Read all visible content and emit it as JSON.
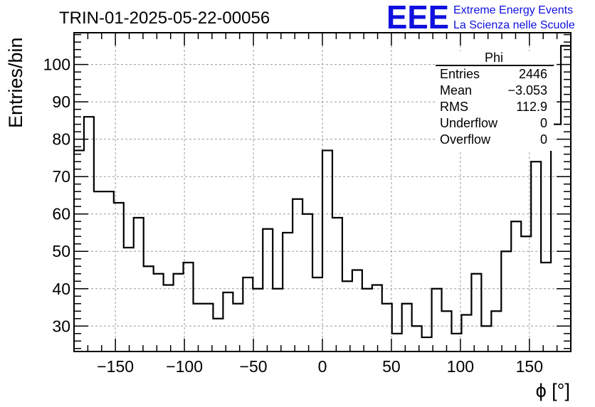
{
  "chart_data": {
    "type": "histogram",
    "title": "TRIN-01-2025-05-22-00056",
    "xlabel": "ϕ [°]",
    "ylabel": "Entries/bin",
    "xlim": [
      -180,
      180
    ],
    "ylim": [
      23.2,
      108.5
    ],
    "grid": true,
    "bin_width": 7.2,
    "x_ticks": [
      -150,
      -100,
      -50,
      0,
      50,
      100,
      150
    ],
    "x_tick_labels": [
      "−150",
      "−100",
      "−50",
      "0",
      "50",
      "100",
      "150"
    ],
    "y_ticks": [
      30,
      40,
      50,
      60,
      70,
      80,
      90,
      100
    ],
    "y_tick_labels": [
      "30",
      "40",
      "50",
      "60",
      "70",
      "80",
      "90",
      "100"
    ],
    "values": [
      77,
      86,
      66,
      66,
      63,
      51,
      59,
      46,
      44,
      41,
      44,
      47,
      36,
      36,
      32,
      39,
      36,
      43,
      40,
      56,
      40,
      55,
      64,
      60,
      43,
      77,
      59,
      42,
      45,
      40,
      41,
      36,
      28,
      36,
      30,
      27,
      40,
      34,
      28,
      33,
      44,
      30,
      34,
      50,
      58,
      54,
      74,
      47,
      84,
      105
    ],
    "stats": {
      "name": "Phi",
      "rows": [
        {
          "label": "Entries",
          "value": "2446"
        },
        {
          "label": "Mean",
          "value": "−3.053"
        },
        {
          "label": "RMS",
          "value": "112.9"
        },
        {
          "label": "Underflow",
          "value": "0"
        },
        {
          "label": "Overflow",
          "value": "0"
        }
      ],
      "placement": "top-right"
    }
  },
  "logo": {
    "text": "EEE",
    "line1": "Extreme Energy Events",
    "line2": "La Scienza nelle Scuole",
    "color": "#1010e0"
  }
}
